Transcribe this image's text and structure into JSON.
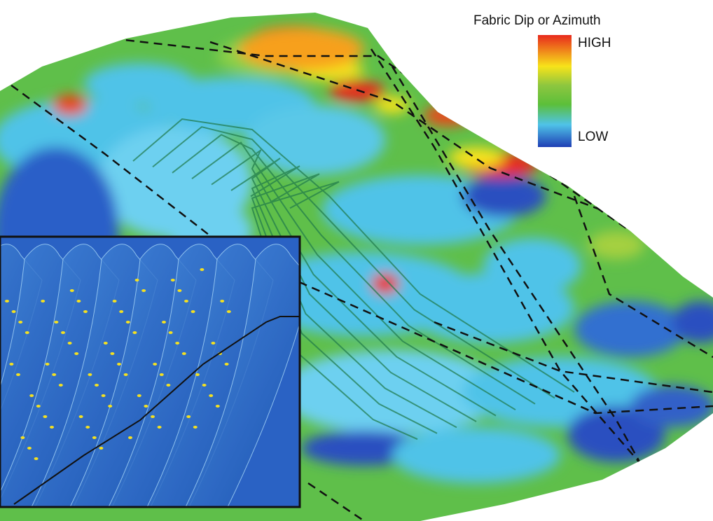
{
  "legend": {
    "title": "Fabric Dip or Azimuth",
    "high": "HIGH",
    "low": "LOW"
  }
}
